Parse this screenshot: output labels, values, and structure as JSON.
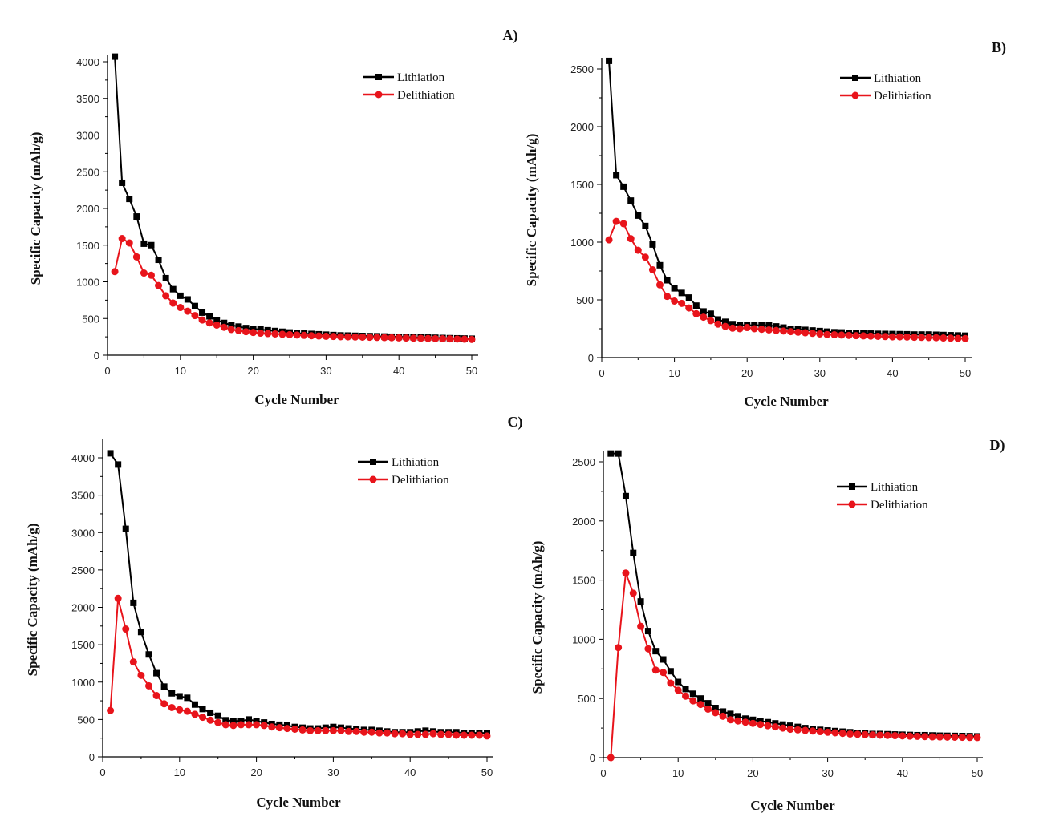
{
  "chart_data": [
    {
      "type": "line",
      "panel_label": "A)",
      "xlabel": "Cycle Number",
      "ylabel": "Specific Capacity (mAh/g)",
      "xlim": [
        0,
        50
      ],
      "ylim": [
        0,
        4080
      ],
      "xticks": [
        "0",
        "10",
        "20",
        "30",
        "40",
        "50"
      ],
      "yticks": [
        "0",
        "500",
        "1000",
        "1500",
        "2000",
        "2500",
        "3000",
        "3500",
        "4000"
      ],
      "legend_placement": "top-right",
      "series": [
        {
          "name": "Lithiation",
          "color": "#000000",
          "marker": "square",
          "values": [
            4070,
            2350,
            2130,
            1890,
            1520,
            1500,
            1300,
            1050,
            900,
            810,
            760,
            670,
            580,
            530,
            480,
            440,
            410,
            390,
            370,
            360,
            350,
            340,
            330,
            320,
            310,
            300,
            295,
            290,
            285,
            280,
            275,
            270,
            268,
            265,
            262,
            260,
            258,
            255,
            252,
            250,
            248,
            245,
            242,
            240,
            238,
            235,
            232,
            230,
            228,
            225
          ]
        },
        {
          "name": "Delithiation",
          "color": "#e8141b",
          "marker": "circle",
          "values": [
            1140,
            1590,
            1530,
            1340,
            1120,
            1090,
            950,
            810,
            710,
            650,
            600,
            540,
            480,
            440,
            410,
            380,
            350,
            335,
            320,
            310,
            300,
            295,
            290,
            285,
            280,
            275,
            270,
            265,
            262,
            258,
            255,
            252,
            250,
            248,
            246,
            244,
            242,
            240,
            238,
            236,
            234,
            232,
            230,
            228,
            226,
            224,
            222,
            220,
            218,
            215
          ]
        }
      ]
    },
    {
      "type": "line",
      "panel_label": "B)",
      "xlabel": "Cycle Number",
      "ylabel": "Specific Capacity (mAh/g)",
      "xlim": [
        0,
        50
      ],
      "ylim": [
        0,
        2600
      ],
      "xticks": [
        "0",
        "10",
        "20",
        "30",
        "40",
        "50"
      ],
      "yticks": [
        "0",
        "500",
        "1000",
        "1500",
        "2000",
        "2500"
      ],
      "legend_placement": "top-right",
      "series": [
        {
          "name": "Lithiation",
          "color": "#000000",
          "marker": "square",
          "values": [
            2570,
            1580,
            1480,
            1360,
            1230,
            1140,
            980,
            800,
            670,
            600,
            560,
            520,
            450,
            400,
            380,
            330,
            310,
            290,
            280,
            280,
            280,
            280,
            280,
            270,
            260,
            250,
            245,
            240,
            235,
            230,
            225,
            220,
            218,
            215,
            212,
            210,
            208,
            206,
            205,
            204,
            203,
            202,
            200,
            200,
            200,
            198,
            196,
            194,
            192,
            190
          ]
        },
        {
          "name": "Delithiation",
          "color": "#e8141b",
          "marker": "circle",
          "values": [
            1020,
            1180,
            1160,
            1030,
            930,
            870,
            760,
            630,
            530,
            490,
            470,
            430,
            380,
            350,
            320,
            290,
            270,
            255,
            250,
            260,
            250,
            245,
            240,
            235,
            230,
            225,
            220,
            215,
            210,
            205,
            200,
            198,
            195,
            192,
            190,
            188,
            186,
            184,
            182,
            180,
            180,
            178,
            176,
            175,
            174,
            172,
            170,
            168,
            166,
            165
          ]
        }
      ]
    },
    {
      "type": "line",
      "panel_label": "C)",
      "xlabel": "Cycle Number",
      "ylabel": "Specific Capacity (mAh/g)",
      "xlim": [
        0,
        50
      ],
      "ylim": [
        0,
        4200
      ],
      "xticks": [
        "0",
        "10",
        "20",
        "30",
        "40",
        "50"
      ],
      "yticks": [
        "0",
        "500",
        "1000",
        "1500",
        "2000",
        "2500",
        "3000",
        "3500",
        "4000"
      ],
      "legend_placement": "top-right",
      "series": [
        {
          "name": "Lithiation",
          "color": "#000000",
          "marker": "square",
          "values": [
            4060,
            3910,
            3050,
            2060,
            1670,
            1370,
            1120,
            940,
            850,
            810,
            790,
            700,
            640,
            590,
            550,
            490,
            480,
            480,
            500,
            480,
            460,
            440,
            430,
            420,
            400,
            390,
            380,
            380,
            390,
            400,
            390,
            380,
            370,
            360,
            360,
            350,
            340,
            330,
            330,
            330,
            340,
            350,
            340,
            330,
            330,
            330,
            320,
            320,
            320,
            320
          ]
        },
        {
          "name": "Delithiation",
          "color": "#e8141b",
          "marker": "circle",
          "values": [
            620,
            2120,
            1710,
            1270,
            1090,
            950,
            820,
            710,
            660,
            630,
            610,
            570,
            530,
            490,
            460,
            430,
            420,
            430,
            430,
            430,
            420,
            400,
            390,
            380,
            370,
            360,
            350,
            350,
            350,
            350,
            350,
            340,
            340,
            330,
            330,
            320,
            320,
            310,
            310,
            300,
            300,
            300,
            310,
            300,
            300,
            290,
            290,
            290,
            290,
            280
          ]
        }
      ]
    },
    {
      "type": "line",
      "panel_label": "D)",
      "xlabel": "Cycle Number",
      "ylabel": "Specific Capacity (mAh/g)",
      "xlim": [
        0,
        50
      ],
      "ylim": [
        0,
        2560
      ],
      "xticks": [
        "0",
        "10",
        "20",
        "30",
        "40",
        "50"
      ],
      "yticks": [
        "0",
        "500",
        "1000",
        "1500",
        "2000",
        "2500"
      ],
      "legend_placement": "top-right",
      "series": [
        {
          "name": "Lithiation",
          "color": "#000000",
          "marker": "square",
          "values": [
            2570,
            2570,
            2210,
            1730,
            1320,
            1070,
            900,
            830,
            730,
            640,
            580,
            540,
            500,
            460,
            420,
            390,
            370,
            350,
            330,
            320,
            310,
            300,
            290,
            280,
            270,
            260,
            250,
            240,
            235,
            230,
            225,
            220,
            215,
            210,
            205,
            200,
            200,
            198,
            196,
            194,
            192,
            190,
            190,
            188,
            186,
            185,
            184,
            183,
            182,
            180
          ]
        },
        {
          "name": "Delithiation",
          "color": "#e8141b",
          "marker": "circle",
          "values": [
            0,
            930,
            1560,
            1390,
            1110,
            920,
            740,
            720,
            630,
            570,
            520,
            480,
            450,
            410,
            380,
            350,
            320,
            310,
            300,
            290,
            280,
            270,
            260,
            250,
            240,
            235,
            230,
            225,
            220,
            215,
            210,
            205,
            200,
            198,
            195,
            192,
            190,
            188,
            186,
            184,
            182,
            180,
            178,
            176,
            175,
            174,
            173,
            172,
            171,
            170
          ]
        }
      ]
    }
  ]
}
